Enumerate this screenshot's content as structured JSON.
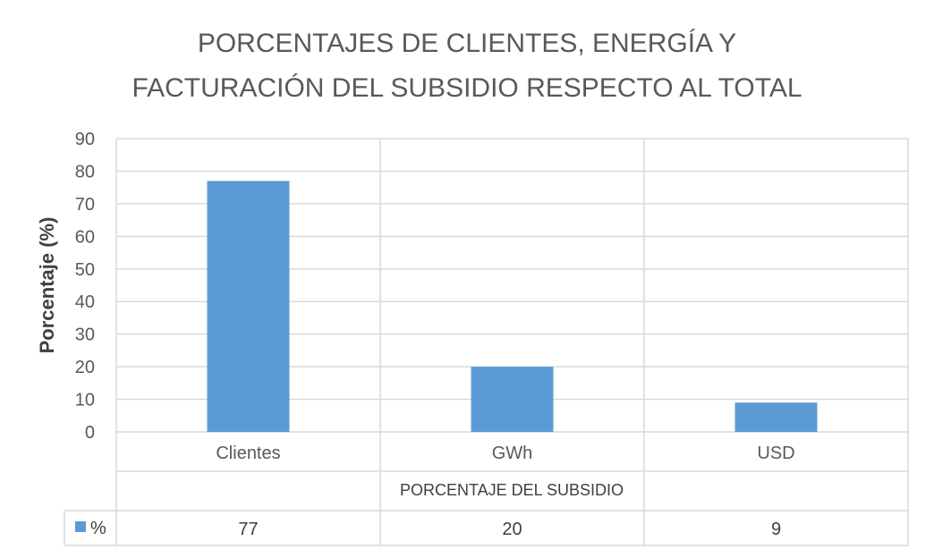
{
  "chart_data": {
    "type": "bar",
    "title_lines": [
      "PORCENTAJES DE CLIENTES, ENERGÍA Y",
      "FACTURACIÓN DEL SUBSIDIO RESPECTO AL TOTAL"
    ],
    "categories": [
      "Clientes",
      "GWh",
      "USD"
    ],
    "series": [
      {
        "name": "%",
        "values": [
          77,
          20,
          9
        ],
        "color": "#5b9bd5"
      }
    ],
    "xlabel": "PORCENTAJE DEL SUBSIDIO",
    "ylabel": "Porcentaje (%)",
    "ylim": [
      0,
      90
    ],
    "yticks": [
      0,
      10,
      20,
      30,
      40,
      50,
      60,
      70,
      80,
      90
    ],
    "grid": true,
    "data_table": true,
    "colors": {
      "gridline": "#d9d9d9",
      "text": "#595959"
    }
  }
}
